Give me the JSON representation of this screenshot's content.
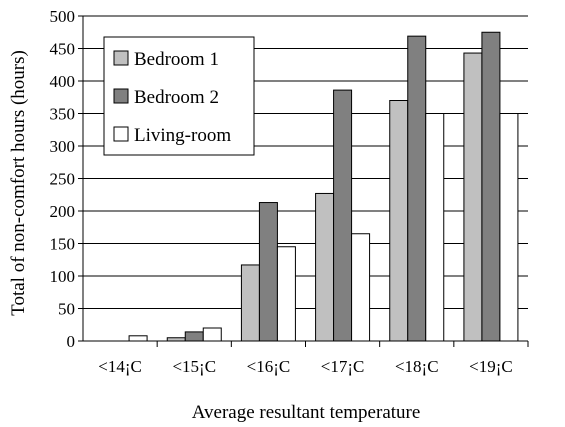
{
  "chart_data": {
    "type": "bar",
    "title": "",
    "xlabel": "Average resultant temperature",
    "ylabel": "Total of non-comfort hours (hours)",
    "ylim": [
      0,
      500
    ],
    "yticks": [
      0,
      50,
      100,
      150,
      200,
      250,
      300,
      350,
      400,
      450,
      500
    ],
    "grid": true,
    "legend_position": "top-left",
    "categories": [
      "<14¡C",
      "<15¡C",
      "<16¡C",
      "<17¡C",
      "<18¡C",
      "<19¡C"
    ],
    "series": [
      {
        "name": "Bedroom 1",
        "color": "#c0c0c0",
        "values": [
          0,
          5,
          117,
          227,
          370,
          443
        ]
      },
      {
        "name": "Bedroom 2",
        "color": "#808080",
        "values": [
          0,
          14,
          213,
          386,
          469,
          475
        ]
      },
      {
        "name": "Living-room",
        "color": "#ffffff",
        "values": [
          8,
          20,
          145,
          165,
          350,
          350
        ]
      }
    ]
  }
}
